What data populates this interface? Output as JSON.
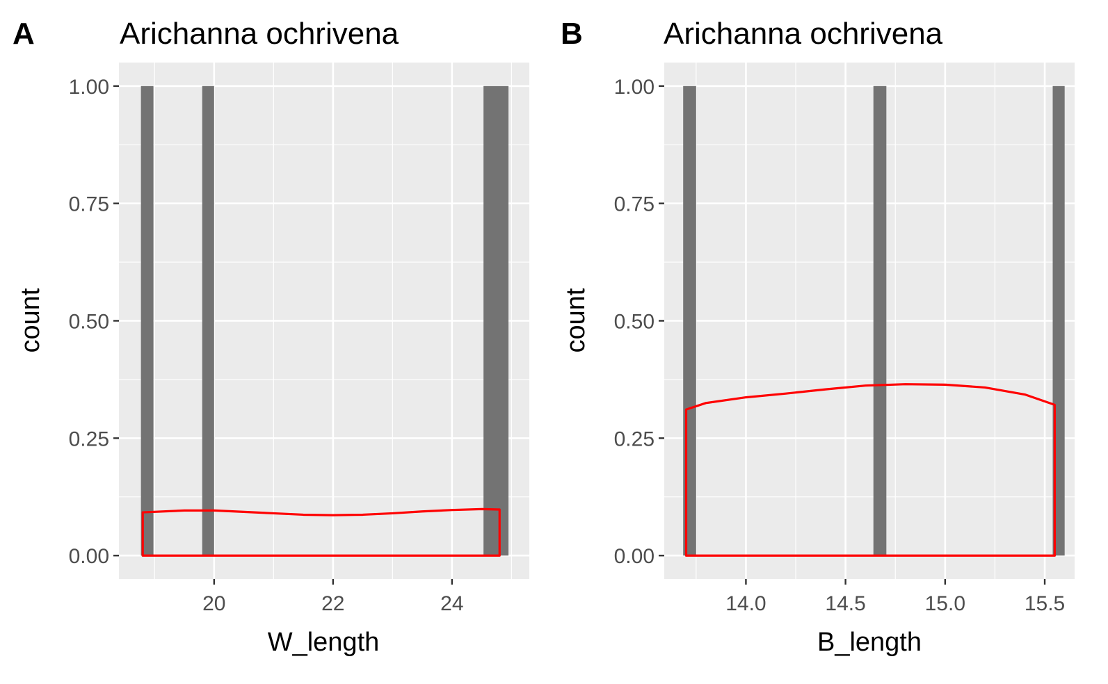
{
  "chart_data": [
    {
      "panel_label": "A",
      "type": "bar",
      "title": "Arichanna ochrivena",
      "xlabel": "W_length",
      "ylabel": "count",
      "xlim": [
        18.4,
        25.3
      ],
      "ylim": [
        -0.05,
        1.05
      ],
      "x_ticks": [
        20,
        22,
        24
      ],
      "x_tick_labels": [
        "20",
        "22",
        "24"
      ],
      "y_ticks": [
        0,
        0.25,
        0.5,
        0.75,
        1
      ],
      "y_tick_labels": [
        "0.00",
        "0.25",
        "0.50",
        "0.75",
        "1.00"
      ],
      "grid": true,
      "bar_color": "#737373",
      "bars": [
        {
          "x0": 18.77,
          "x1": 18.98,
          "count": 1
        },
        {
          "x0": 19.8,
          "x1": 20.0,
          "count": 1
        },
        {
          "x0": 24.53,
          "x1": 24.95,
          "count": 1
        }
      ],
      "density_color": "#ff0000",
      "density": {
        "x": [
          18.8,
          19.5,
          20.0,
          20.5,
          21.0,
          21.5,
          22.0,
          22.5,
          23.0,
          23.5,
          24.0,
          24.5,
          24.8
        ],
        "y": [
          0.092,
          0.096,
          0.096,
          0.093,
          0.09,
          0.087,
          0.086,
          0.087,
          0.09,
          0.094,
          0.097,
          0.099,
          0.098
        ]
      }
    },
    {
      "panel_label": "B",
      "type": "bar",
      "title": "Arichanna ochrivena",
      "xlabel": "B_length",
      "ylabel": "count",
      "xlim": [
        13.59,
        15.65
      ],
      "ylim": [
        -0.05,
        1.05
      ],
      "x_ticks": [
        14.0,
        14.5,
        15.0,
        15.5
      ],
      "x_tick_labels": [
        "14.0",
        "14.5",
        "15.0",
        "15.5"
      ],
      "y_ticks": [
        0,
        0.25,
        0.5,
        0.75,
        1
      ],
      "y_tick_labels": [
        "0.00",
        "0.25",
        "0.50",
        "0.75",
        "1.00"
      ],
      "grid": true,
      "bar_color": "#737373",
      "bars": [
        {
          "x0": 13.685,
          "x1": 13.75,
          "count": 1
        },
        {
          "x0": 14.64,
          "x1": 14.705,
          "count": 1
        },
        {
          "x0": 15.54,
          "x1": 15.6,
          "count": 1
        }
      ],
      "density_color": "#ff0000",
      "density": {
        "x": [
          13.7,
          13.8,
          14.0,
          14.2,
          14.4,
          14.6,
          14.8,
          15.0,
          15.2,
          15.4,
          15.55
        ],
        "y": [
          0.311,
          0.325,
          0.337,
          0.345,
          0.354,
          0.362,
          0.365,
          0.364,
          0.358,
          0.343,
          0.321
        ]
      }
    }
  ]
}
